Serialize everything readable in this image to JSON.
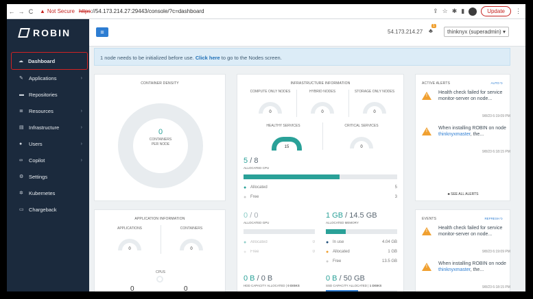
{
  "browser": {
    "security_label": "Not Secure",
    "url_scheme": "https",
    "url_rest": "://54.173.214.27:29443/console/?c=dashboard",
    "update_label": "Update"
  },
  "sidebar": {
    "logo_text": "ROBIN",
    "items": [
      {
        "label": "Dashboard",
        "icon": "dashboard-icon",
        "glyph": "☁",
        "active": true,
        "has_children": false
      },
      {
        "label": "Applications",
        "icon": "applications-icon",
        "glyph": "✎",
        "active": false,
        "has_children": true
      },
      {
        "label": "Repositories",
        "icon": "folder-icon",
        "glyph": "▬",
        "active": false,
        "has_children": false
      },
      {
        "label": "Resources",
        "icon": "resources-icon",
        "glyph": "≣",
        "active": false,
        "has_children": true
      },
      {
        "label": "Infrastructure",
        "icon": "server-icon",
        "glyph": "▤",
        "active": false,
        "has_children": true
      },
      {
        "label": "Users",
        "icon": "user-icon",
        "glyph": "●",
        "active": false,
        "has_children": true
      },
      {
        "label": "Copilot",
        "icon": "binoculars-icon",
        "glyph": "∞",
        "active": false,
        "has_children": true
      },
      {
        "label": "Settings",
        "icon": "gears-icon",
        "glyph": "⚙",
        "active": false,
        "has_children": false
      },
      {
        "label": "Kubernetes",
        "icon": "kubernetes-icon",
        "glyph": "✲",
        "active": false,
        "has_children": false
      },
      {
        "label": "Chargeback",
        "icon": "chargeback-icon",
        "glyph": "▭",
        "active": false,
        "has_children": false
      }
    ]
  },
  "topbar": {
    "ip": "54.173.214.27",
    "notification_count": "1",
    "user": "thinknyx (superadmin)"
  },
  "banner": {
    "before": "1 node needs to be initialized before use. ",
    "link": "Click here",
    "after": " to go to the Nodes screen."
  },
  "container_density": {
    "title": "CONTAINER DENSITY",
    "value": "0",
    "caption_line1": "CONTAINERS",
    "caption_line2": "PER NODE"
  },
  "infrastructure": {
    "title": "INFRASTRUCTURE INFORMATION",
    "compute_only": {
      "label": "COMPUTE ONLY NODES",
      "value": "0"
    },
    "hybrid": {
      "label": "HYBRID NODES",
      "value": "0"
    },
    "storage_only": {
      "label": "STORAGE ONLY NODES",
      "value": "0"
    },
    "healthy": {
      "label": "HEALTHY SERVICES",
      "value": "15"
    },
    "critical": {
      "label": "CRITICAL SERVICES",
      "value": "0"
    },
    "cpu": {
      "used": "5",
      "total": "8",
      "label": "ALLOCATED CPU",
      "fraction": 0.625,
      "allocated_label": "Allocated",
      "allocated": "5",
      "free_label": "Free",
      "free": "3"
    },
    "gpu": {
      "used": "0",
      "total": "0",
      "label": "ALLOCATED GPU",
      "allocated_label": "Allocated",
      "allocated": "0",
      "free_label": "Free",
      "free": "0"
    },
    "memory": {
      "used": "1 GB",
      "total": "14.5 GB",
      "label": "ALLOCATED MEMORY",
      "fraction": 0.28,
      "in_use_label": "In use",
      "in_use": "4.04 GB",
      "allocated_label": "Allocated",
      "allocated": "1 GB",
      "free_label": "Free",
      "free": "13.5 GB"
    },
    "hdd": {
      "used": "0 B",
      "total": "0 B",
      "label": "HDD CAPACITY ALLOCATED",
      "disks": "0 DISKS"
    },
    "ssd": {
      "used": "0 B",
      "total": "50 GB",
      "label": "SSD CAPACITY ALLOCATED",
      "disks": "1 DISKS"
    }
  },
  "app_info": {
    "title": "APPLICATION INFORMATION",
    "applications": {
      "label": "APPLICATIONS",
      "value": "0"
    },
    "containers": {
      "label": "CONTAINERS",
      "value": "0"
    },
    "cpus_label": "CPUS",
    "bottom_left": "0",
    "bottom_right": "0"
  },
  "active_alerts": {
    "title": "ACTIVE ALERTS",
    "mode": "AUTO",
    "items": [
      {
        "text": "Health check failed for service monitor-server on node...",
        "time": "9/8/23 6:19:09 PM"
      },
      {
        "text_before": "When installing ROBIN on node ",
        "link": "thinknyxmaster",
        "text_after": ", the...",
        "time": "9/8/23 6:18:15 PM"
      }
    ],
    "see_all": "SEE ALL ALERTS"
  },
  "events": {
    "title": "EVENTS",
    "refresh": "REFRESH",
    "items": [
      {
        "text": "Health check failed for service monitor-server on node...",
        "time": "9/8/23 6:19:09 PM"
      },
      {
        "text_before": "When installing ROBIN on node ",
        "link": "thinknyxmaster",
        "text_after": ", the...",
        "time": "9/8/23 6:18:15 PM"
      }
    ]
  },
  "colors": {
    "accent": "#2aa198",
    "sidebar": "#1b2a3d",
    "link": "#2d7dd2",
    "warning": "#f0a030"
  }
}
